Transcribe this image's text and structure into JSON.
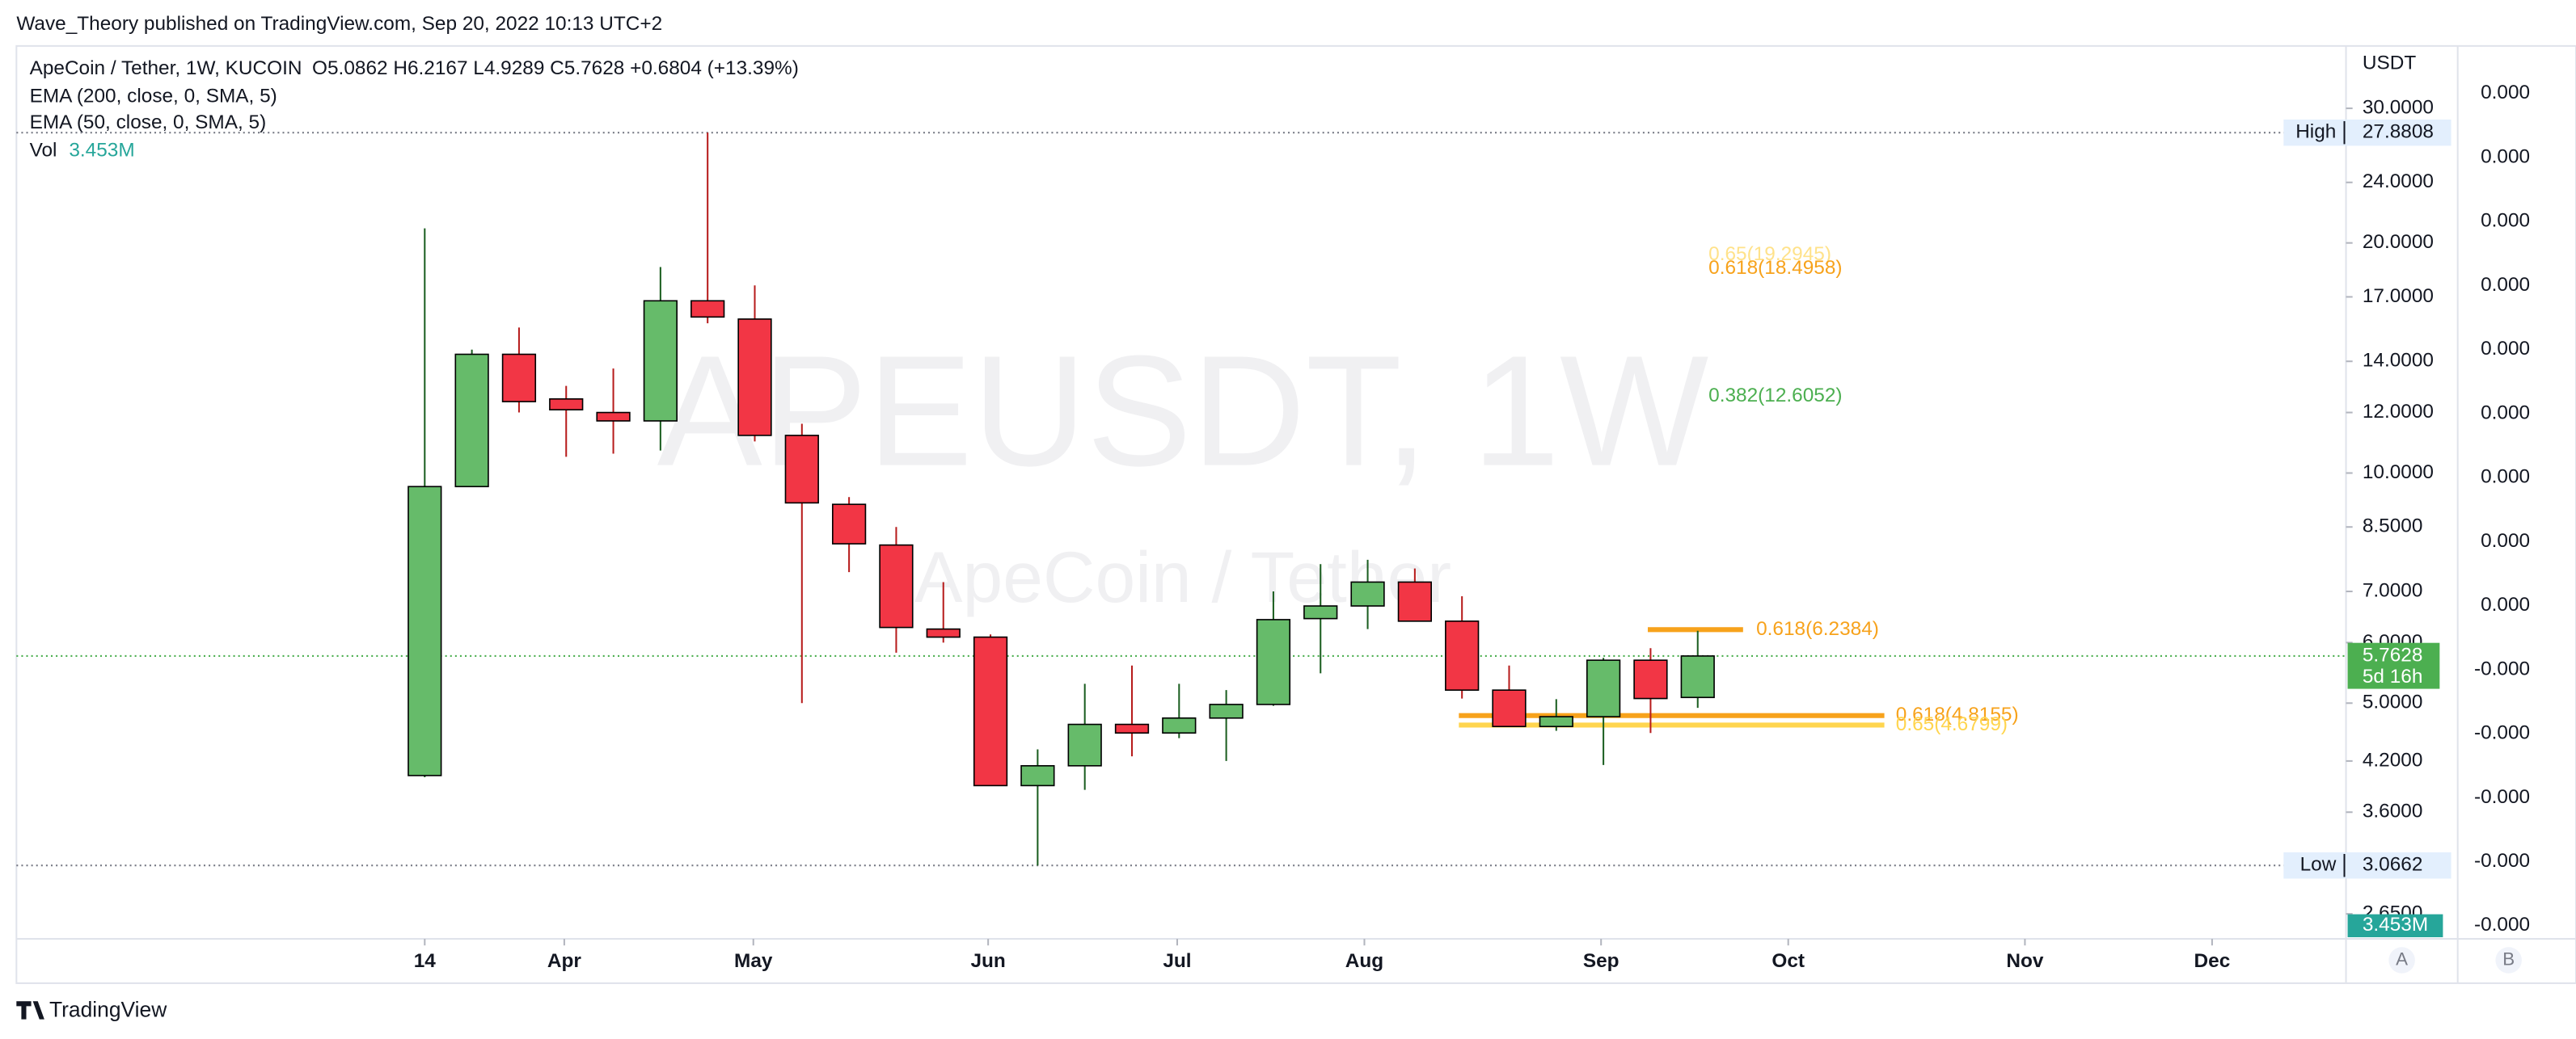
{
  "header": "Wave_Theory published on TradingView.com, Sep 20, 2022 10:13 UTC+2",
  "footer": "TradingView",
  "chart_data": {
    "type": "candlestick",
    "title": "ApeCoin / Tether, 1W, KUCOIN",
    "ohlc": "O5.0862 H6.2167 L4.9289 C5.7628 +0.6804 (+13.39%)",
    "indicators": [
      "EMA (200, close, 0, SMA, 5)",
      "EMA (50, close, 0, SMA, 5)"
    ],
    "volume_label": "Vol",
    "volume": "3.453M",
    "watermark": "APEUSDT, 1W",
    "watermark_subtitle": "ApeCoin / Tether",
    "currency": "USDT",
    "log_scale": true,
    "up_color": "#66bb6a",
    "down_color": "#f23645",
    "x": [
      0,
      1,
      2,
      3,
      4,
      5,
      6,
      7,
      8,
      9,
      10,
      11,
      12,
      13,
      14,
      15,
      16,
      17,
      18,
      19,
      20,
      21,
      22,
      23,
      24,
      25,
      26,
      27
    ],
    "open": [
      4.02,
      9.6,
      14.3,
      12.5,
      12.0,
      11.7,
      16.8,
      15.9,
      11.2,
      9.1,
      8.05,
      6.25,
      6.1,
      3.9,
      4.14,
      4.69,
      4.57,
      4.78,
      4.98,
      6.45,
      6.7,
      7.2,
      6.4,
      5.2,
      4.66,
      4.8,
      5.69,
      5.0862
    ],
    "high": [
      20.9,
      14.5,
      15.5,
      13.0,
      13.7,
      18.6,
      27.8808,
      17.6,
      11.6,
      9.3,
      8.5,
      7.2,
      6.15,
      4.35,
      5.3,
      5.6,
      5.3,
      5.2,
      7.0,
      7.6,
      7.7,
      7.5,
      6.9,
      5.6,
      5.06,
      5.73,
      5.9,
      6.2167
    ],
    "low": [
      4.0,
      9.6,
      12.0,
      10.5,
      10.6,
      10.7,
      15.7,
      11.0,
      5.0,
      7.42,
      5.82,
      6.0,
      3.9,
      3.0662,
      3.85,
      4.26,
      4.5,
      4.2,
      4.96,
      5.47,
      6.25,
      6.4,
      5.07,
      4.66,
      4.6,
      4.15,
      4.57,
      4.9289
    ],
    "close": [
      9.6,
      14.3,
      12.4,
      12.1,
      11.7,
      16.8,
      16.0,
      11.2,
      9.14,
      8.08,
      6.28,
      6.1,
      3.9,
      4.14,
      4.69,
      4.57,
      4.78,
      4.98,
      6.43,
      6.7,
      7.2,
      6.4,
      5.2,
      4.66,
      4.8,
      5.69,
      5.07,
      5.7628
    ],
    "xlim": [
      -8.66,
      40.75
    ],
    "xticks": [
      {
        "value": 0,
        "label": "14"
      },
      {
        "value": 2.96,
        "label": "Apr"
      },
      {
        "value": 6.97,
        "label": "May"
      },
      {
        "value": 11.95,
        "label": "Jun"
      },
      {
        "value": 15.96,
        "label": "Jul"
      },
      {
        "value": 19.93,
        "label": "Aug"
      },
      {
        "value": 24.95,
        "label": "Sep"
      },
      {
        "value": 28.92,
        "label": "Oct"
      },
      {
        "value": 33.94,
        "label": "Nov"
      },
      {
        "value": 37.91,
        "label": "Dec"
      }
    ],
    "ylim": [
      2.47,
      36.2
    ],
    "yticks": [
      {
        "value": 30,
        "label": "30.0000"
      },
      {
        "value": 24,
        "label": "24.0000"
      },
      {
        "value": 20,
        "label": "20.0000"
      },
      {
        "value": 17,
        "label": "17.0000"
      },
      {
        "value": 14,
        "label": "14.0000"
      },
      {
        "value": 12,
        "label": "12.0000"
      },
      {
        "value": 10,
        "label": "10.0000"
      },
      {
        "value": 8.5,
        "label": "8.5000"
      },
      {
        "value": 7,
        "label": "7.0000"
      },
      {
        "value": 6,
        "label": "6.0000"
      },
      {
        "value": 5,
        "label": "5.0000"
      },
      {
        "value": 4.2,
        "label": "4.2000"
      },
      {
        "value": 3.6,
        "label": "3.6000"
      },
      {
        "value": 2.65,
        "label": "2.6500"
      }
    ],
    "volume_axis_labels": [
      "0.000",
      "0.000",
      "0.000",
      "0.000",
      "0.000",
      "0.000",
      "0.000",
      "0.000",
      "0.000",
      "-0.000",
      "-0.000",
      "-0.000",
      "-0.000",
      "-0.000"
    ],
    "high_marker": {
      "label": "High",
      "value": 27.8808,
      "value_label": "27.8808"
    },
    "low_marker": {
      "label": "Low",
      "value": 3.0662,
      "value_label": "3.0662"
    },
    "last_price": {
      "value": 5.7628,
      "value_label": "5.7628",
      "countdown": "5d 16h"
    },
    "fib_levels": [
      {
        "label": "0.65(19.2945)",
        "value": 19.2945,
        "color": "#ffe28a"
      },
      {
        "label": "0.618(18.4958)",
        "value": 18.4958,
        "color": "#f7a21b"
      },
      {
        "label": "0.382(12.6052)",
        "value": 12.6052,
        "color": "#4caf50"
      },
      {
        "label": "0.618(6.2384)",
        "value": 6.2384,
        "color": "#f7a21b"
      },
      {
        "label": "0.618(4.8155)",
        "value": 4.8155,
        "color": "#f7a21b"
      },
      {
        "label": "0.65(4.6799)",
        "value": 4.6799,
        "color": "#ffd54f"
      }
    ],
    "scale_buttons": [
      "A",
      "B"
    ]
  }
}
